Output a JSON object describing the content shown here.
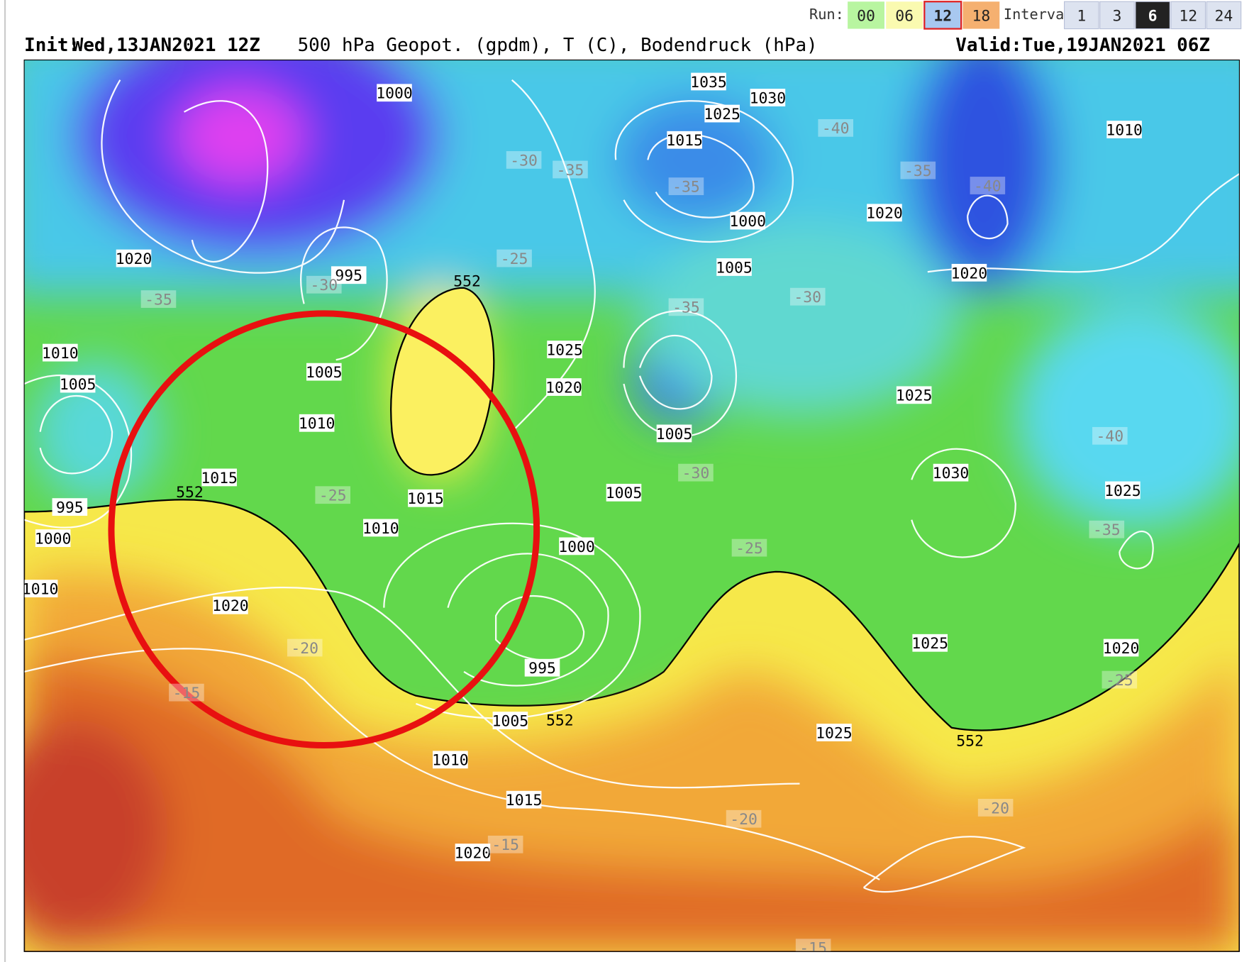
{
  "toolbar": {
    "run_label": "Run:",
    "runs": [
      "00",
      "06",
      "12",
      "18"
    ],
    "selected_run": "12",
    "interval_label": "Interval",
    "intervals": [
      "1",
      "3",
      "6",
      "12",
      "24"
    ],
    "selected_interval": "6"
  },
  "header": {
    "init_label": "Init:",
    "init": "Wed,13JAN2021 12Z",
    "title": "500 hPa Geopot. (gpdm), T (C), Bodendruck (hPa)",
    "valid_label": "Valid:",
    "valid": "Tue,19JAN2021 06Z"
  },
  "map": {
    "pressure_labels": [
      "1035",
      "1030",
      "1025",
      "1015",
      "1000",
      "1005",
      "1020",
      "1020",
      "1010",
      "1000",
      "995",
      "1020",
      "1010",
      "1005",
      "1005",
      "1010",
      "1015",
      "995",
      "1000",
      "1010",
      "1020",
      "1025",
      "1020",
      "1015",
      "1010",
      "1000",
      "1005",
      "1005",
      "995",
      "1005",
      "1010",
      "1015",
      "1020",
      "1025",
      "1030",
      "1025",
      "1025",
      "1020",
      "1025"
    ],
    "temperature_labels": [
      "-35",
      "-30",
      "-25",
      "-20",
      "-15",
      "-30",
      "-35",
      "-25",
      "-35",
      "-40",
      "-35",
      "-40",
      "-35",
      "-30",
      "-30",
      "-25",
      "-40",
      "-35",
      "-25",
      "-20",
      "-20",
      "-15",
      "-15"
    ],
    "geopotential_labels": [
      "552",
      "552",
      "552",
      "552"
    ]
  }
}
